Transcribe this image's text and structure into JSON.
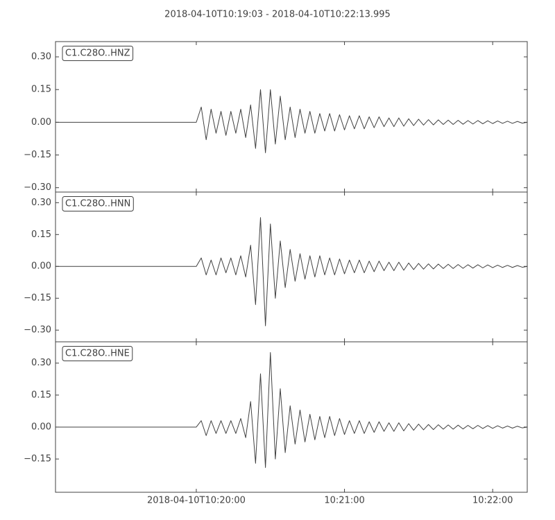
{
  "title": "2018-04-10T10:19:03  -  2018-04-10T10:22:13.995",
  "chart_data": [
    {
      "type": "line",
      "label": "C1.C28O..HNZ",
      "color": "#404040",
      "xlim": [
        "2018-04-10T10:19:03",
        "2018-04-10T10:22:13.995"
      ],
      "ylim": [
        -0.32,
        0.37
      ],
      "yticks": [
        {
          "value": -0.3,
          "label": "−0.30"
        },
        {
          "value": -0.15,
          "label": "−0.15"
        },
        {
          "value": 0,
          "label": "0.00"
        },
        0.15,
        {
          "value": 0.3,
          "label": "0.30"
        }
      ],
      "x": [
        "2018-04-10T10:19:03",
        "2018-04-10T10:20:00",
        "2018-04-10T10:20:02",
        "2018-04-10T10:20:04",
        "2018-04-10T10:20:06",
        "2018-04-10T10:20:08",
        "2018-04-10T10:20:10",
        "2018-04-10T10:20:12",
        "2018-04-10T10:20:14",
        "2018-04-10T10:20:16",
        "2018-04-10T10:20:18",
        "2018-04-10T10:20:20",
        "2018-04-10T10:20:22",
        "2018-04-10T10:20:24",
        "2018-04-10T10:20:26",
        "2018-04-10T10:20:28",
        "2018-04-10T10:20:30",
        "2018-04-10T10:20:32",
        "2018-04-10T10:20:34",
        "2018-04-10T10:20:36",
        "2018-04-10T10:20:38",
        "2018-04-10T10:20:40",
        "2018-04-10T10:20:42",
        "2018-04-10T10:20:44",
        "2018-04-10T10:20:46",
        "2018-04-10T10:20:48",
        "2018-04-10T10:20:50",
        "2018-04-10T10:20:52",
        "2018-04-10T10:20:54",
        "2018-04-10T10:20:56",
        "2018-04-10T10:20:58",
        "2018-04-10T10:21:00",
        "2018-04-10T10:21:02",
        "2018-04-10T10:21:04",
        "2018-04-10T10:21:06",
        "2018-04-10T10:21:08",
        "2018-04-10T10:21:10",
        "2018-04-10T10:21:12",
        "2018-04-10T10:21:14",
        "2018-04-10T10:21:16",
        "2018-04-10T10:21:18",
        "2018-04-10T10:21:20",
        "2018-04-10T10:21:22",
        "2018-04-10T10:21:24",
        "2018-04-10T10:21:26",
        "2018-04-10T10:21:28",
        "2018-04-10T10:21:30",
        "2018-04-10T10:21:32",
        "2018-04-10T10:21:34",
        "2018-04-10T10:21:36",
        "2018-04-10T10:21:38",
        "2018-04-10T10:21:40",
        "2018-04-10T10:21:42",
        "2018-04-10T10:21:44",
        "2018-04-10T10:21:46",
        "2018-04-10T10:21:48",
        "2018-04-10T10:21:50",
        "2018-04-10T10:21:52",
        "2018-04-10T10:21:54",
        "2018-04-10T10:21:56",
        "2018-04-10T10:21:58",
        "2018-04-10T10:22:00",
        "2018-04-10T10:22:02",
        "2018-04-10T10:22:04",
        "2018-04-10T10:22:06",
        "2018-04-10T10:22:08",
        "2018-04-10T10:22:10",
        "2018-04-10T10:22:12",
        "2018-04-10T10:22:13.995"
      ],
      "values": [
        0,
        0,
        0.07,
        -0.08,
        0.06,
        -0.05,
        0.05,
        -0.06,
        0.05,
        -0.05,
        0.06,
        -0.07,
        0.08,
        -0.12,
        0.15,
        -0.14,
        0.15,
        -0.1,
        0.12,
        -0.08,
        0.07,
        -0.07,
        0.06,
        -0.05,
        0.05,
        -0.05,
        0.04,
        -0.04,
        0.04,
        -0.04,
        0.035,
        -0.035,
        0.03,
        -0.03,
        0.03,
        -0.03,
        0.025,
        -0.025,
        0.025,
        -0.02,
        0.02,
        -0.02,
        0.02,
        -0.018,
        0.016,
        -0.015,
        0.014,
        -0.013,
        0.012,
        -0.012,
        0.011,
        -0.01,
        0.01,
        -0.01,
        0.009,
        -0.009,
        0.008,
        -0.008,
        0.008,
        -0.007,
        0.007,
        -0.006,
        0.006,
        -0.005,
        0.005,
        -0.005,
        0.004,
        -0.004,
        0
      ]
    },
    {
      "type": "line",
      "label": "C1.C28O..HNN",
      "color": "#404040",
      "xlim": [
        "2018-04-10T10:19:03",
        "2018-04-10T10:22:13.995"
      ],
      "ylim": [
        -0.355,
        0.35
      ],
      "yticks": [
        {
          "value": -0.3,
          "label": "−0.30"
        },
        {
          "value": -0.15,
          "label": "−0.15"
        },
        {
          "value": 0,
          "label": "0.00"
        },
        0.15,
        {
          "value": 0.3,
          "label": "0.30"
        }
      ],
      "x": [
        "2018-04-10T10:19:03",
        "2018-04-10T10:20:00",
        "2018-04-10T10:20:02",
        "2018-04-10T10:20:04",
        "2018-04-10T10:20:06",
        "2018-04-10T10:20:08",
        "2018-04-10T10:20:10",
        "2018-04-10T10:20:12",
        "2018-04-10T10:20:14",
        "2018-04-10T10:20:16",
        "2018-04-10T10:20:18",
        "2018-04-10T10:20:20",
        "2018-04-10T10:20:22",
        "2018-04-10T10:20:24",
        "2018-04-10T10:20:26",
        "2018-04-10T10:20:28",
        "2018-04-10T10:20:30",
        "2018-04-10T10:20:32",
        "2018-04-10T10:20:34",
        "2018-04-10T10:20:36",
        "2018-04-10T10:20:38",
        "2018-04-10T10:20:40",
        "2018-04-10T10:20:42",
        "2018-04-10T10:20:44",
        "2018-04-10T10:20:46",
        "2018-04-10T10:20:48",
        "2018-04-10T10:20:50",
        "2018-04-10T10:20:52",
        "2018-04-10T10:20:54",
        "2018-04-10T10:20:56",
        "2018-04-10T10:20:58",
        "2018-04-10T10:21:00",
        "2018-04-10T10:21:02",
        "2018-04-10T10:21:04",
        "2018-04-10T10:21:06",
        "2018-04-10T10:21:08",
        "2018-04-10T10:21:10",
        "2018-04-10T10:21:12",
        "2018-04-10T10:21:14",
        "2018-04-10T10:21:16",
        "2018-04-10T10:21:18",
        "2018-04-10T10:21:20",
        "2018-04-10T10:21:22",
        "2018-04-10T10:21:24",
        "2018-04-10T10:21:26",
        "2018-04-10T10:21:28",
        "2018-04-10T10:21:30",
        "2018-04-10T10:21:32",
        "2018-04-10T10:21:34",
        "2018-04-10T10:21:36",
        "2018-04-10T10:21:38",
        "2018-04-10T10:21:40",
        "2018-04-10T10:21:42",
        "2018-04-10T10:21:44",
        "2018-04-10T10:21:46",
        "2018-04-10T10:21:48",
        "2018-04-10T10:21:50",
        "2018-04-10T10:21:52",
        "2018-04-10T10:21:54",
        "2018-04-10T10:21:56",
        "2018-04-10T10:21:58",
        "2018-04-10T10:22:00",
        "2018-04-10T10:22:02",
        "2018-04-10T10:22:04",
        "2018-04-10T10:22:06",
        "2018-04-10T10:22:08",
        "2018-04-10T10:22:10",
        "2018-04-10T10:22:12",
        "2018-04-10T10:22:13.995"
      ],
      "values": [
        0,
        0,
        0.04,
        -0.04,
        0.03,
        -0.04,
        0.04,
        -0.03,
        0.04,
        -0.04,
        0.05,
        -0.05,
        0.1,
        -0.18,
        0.23,
        -0.28,
        0.2,
        -0.15,
        0.12,
        -0.1,
        0.08,
        -0.07,
        0.06,
        -0.06,
        0.05,
        -0.05,
        0.05,
        -0.04,
        0.04,
        -0.04,
        0.035,
        -0.035,
        0.03,
        -0.03,
        0.03,
        -0.03,
        0.025,
        -0.025,
        0.025,
        -0.02,
        0.02,
        -0.02,
        0.02,
        -0.018,
        0.016,
        -0.015,
        0.014,
        -0.013,
        0.012,
        -0.012,
        0.011,
        -0.01,
        0.01,
        -0.01,
        0.009,
        -0.009,
        0.008,
        -0.008,
        0.008,
        -0.007,
        0.007,
        -0.006,
        0.006,
        -0.005,
        0.005,
        -0.005,
        0.004,
        -0.004,
        0
      ]
    },
    {
      "type": "line",
      "label": "C1.C28O..HNE",
      "color": "#404040",
      "xlim": [
        "2018-04-10T10:19:03",
        "2018-04-10T10:22:13.995"
      ],
      "ylim": [
        -0.306,
        0.4
      ],
      "yticks": [
        {
          "value": -0.15,
          "label": "−0.15"
        },
        {
          "value": 0,
          "label": "0.00"
        },
        0.15,
        {
          "value": 0.3,
          "label": "0.30"
        }
      ],
      "xticks": [
        "2018-04-10T10:20:00",
        {
          "value": "2018-04-10T10:21:00",
          "label": "10:21:00"
        },
        {
          "value": "2018-04-10T10:22:00",
          "label": "10:22:00"
        }
      ],
      "x": [
        "2018-04-10T10:19:03",
        "2018-04-10T10:20:00",
        "2018-04-10T10:20:02",
        "2018-04-10T10:20:04",
        "2018-04-10T10:20:06",
        "2018-04-10T10:20:08",
        "2018-04-10T10:20:10",
        "2018-04-10T10:20:12",
        "2018-04-10T10:20:14",
        "2018-04-10T10:20:16",
        "2018-04-10T10:20:18",
        "2018-04-10T10:20:20",
        "2018-04-10T10:20:22",
        "2018-04-10T10:20:24",
        "2018-04-10T10:20:26",
        "2018-04-10T10:20:28",
        "2018-04-10T10:20:30",
        "2018-04-10T10:20:32",
        "2018-04-10T10:20:34",
        "2018-04-10T10:20:36",
        "2018-04-10T10:20:38",
        "2018-04-10T10:20:40",
        "2018-04-10T10:20:42",
        "2018-04-10T10:20:44",
        "2018-04-10T10:20:46",
        "2018-04-10T10:20:48",
        "2018-04-10T10:20:50",
        "2018-04-10T10:20:52",
        "2018-04-10T10:20:54",
        "2018-04-10T10:20:56",
        "2018-04-10T10:20:58",
        "2018-04-10T10:21:00",
        "2018-04-10T10:21:02",
        "2018-04-10T10:21:04",
        "2018-04-10T10:21:06",
        "2018-04-10T10:21:08",
        "2018-04-10T10:21:10",
        "2018-04-10T10:21:12",
        "2018-04-10T10:21:14",
        "2018-04-10T10:21:16",
        "2018-04-10T10:21:18",
        "2018-04-10T10:21:20",
        "2018-04-10T10:21:22",
        "2018-04-10T10:21:24",
        "2018-04-10T10:21:26",
        "2018-04-10T10:21:28",
        "2018-04-10T10:21:30",
        "2018-04-10T10:21:32",
        "2018-04-10T10:21:34",
        "2018-04-10T10:21:36",
        "2018-04-10T10:21:38",
        "2018-04-10T10:21:40",
        "2018-04-10T10:21:42",
        "2018-04-10T10:21:44",
        "2018-04-10T10:21:46",
        "2018-04-10T10:21:48",
        "2018-04-10T10:21:50",
        "2018-04-10T10:21:52",
        "2018-04-10T10:21:54",
        "2018-04-10T10:21:56",
        "2018-04-10T10:21:58",
        "2018-04-10T10:22:00",
        "2018-04-10T10:22:02",
        "2018-04-10T10:22:04",
        "2018-04-10T10:22:06",
        "2018-04-10T10:22:08",
        "2018-04-10T10:22:10",
        "2018-04-10T10:22:12",
        "2018-04-10T10:22:13.995"
      ],
      "values": [
        0,
        0,
        0.03,
        -0.04,
        0.03,
        -0.03,
        0.03,
        -0.03,
        0.03,
        -0.03,
        0.04,
        -0.05,
        0.12,
        -0.17,
        0.25,
        -0.19,
        0.35,
        -0.15,
        0.18,
        -0.12,
        0.1,
        -0.08,
        0.08,
        -0.07,
        0.06,
        -0.06,
        0.05,
        -0.05,
        0.05,
        -0.04,
        0.04,
        -0.035,
        0.03,
        -0.03,
        0.03,
        -0.03,
        0.025,
        -0.025,
        0.025,
        -0.02,
        0.02,
        -0.02,
        0.02,
        -0.018,
        0.016,
        -0.015,
        0.014,
        -0.013,
        0.012,
        -0.012,
        0.011,
        -0.01,
        0.01,
        -0.01,
        0.009,
        -0.009,
        0.008,
        -0.008,
        0.008,
        -0.007,
        0.007,
        -0.006,
        0.006,
        -0.005,
        0.005,
        -0.005,
        0.004,
        -0.004,
        0
      ]
    }
  ]
}
